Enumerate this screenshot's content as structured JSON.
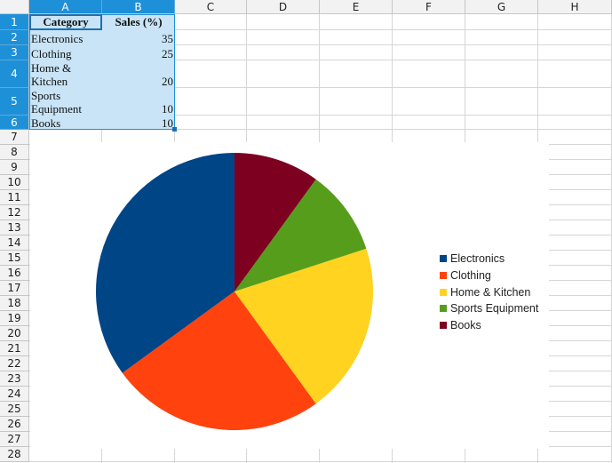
{
  "columns": [
    "A",
    "B",
    "C",
    "D",
    "E",
    "F",
    "G",
    "H"
  ],
  "rows": [
    "1",
    "2",
    "3",
    "4",
    "5",
    "6",
    "7",
    "8",
    "9",
    "10",
    "11",
    "12",
    "13",
    "14",
    "15",
    "16",
    "17",
    "18",
    "19",
    "20",
    "21",
    "22",
    "23",
    "24",
    "25",
    "26",
    "27",
    "28"
  ],
  "table": {
    "header": {
      "category": "Category",
      "sales": "Sales (%)"
    },
    "rows": [
      {
        "category": "Electronics",
        "sales": "35"
      },
      {
        "category": "Clothing",
        "sales": "25"
      },
      {
        "category": "Home & Kitchen",
        "sales": "20"
      },
      {
        "category": "Sports Equipment",
        "sales": "10"
      },
      {
        "category": "Books",
        "sales": "10"
      }
    ]
  },
  "chart_data": {
    "type": "pie",
    "categories": [
      "Electronics",
      "Clothing",
      "Home & Kitchen",
      "Sports Equipment",
      "Books"
    ],
    "values": [
      35,
      25,
      20,
      10,
      10
    ],
    "colors": [
      "#004586",
      "#ff420e",
      "#ffd320",
      "#579d1c",
      "#7e0021"
    ],
    "start_angle_deg": 0,
    "direction": "counterclockwise-from-top",
    "legend": "right"
  }
}
